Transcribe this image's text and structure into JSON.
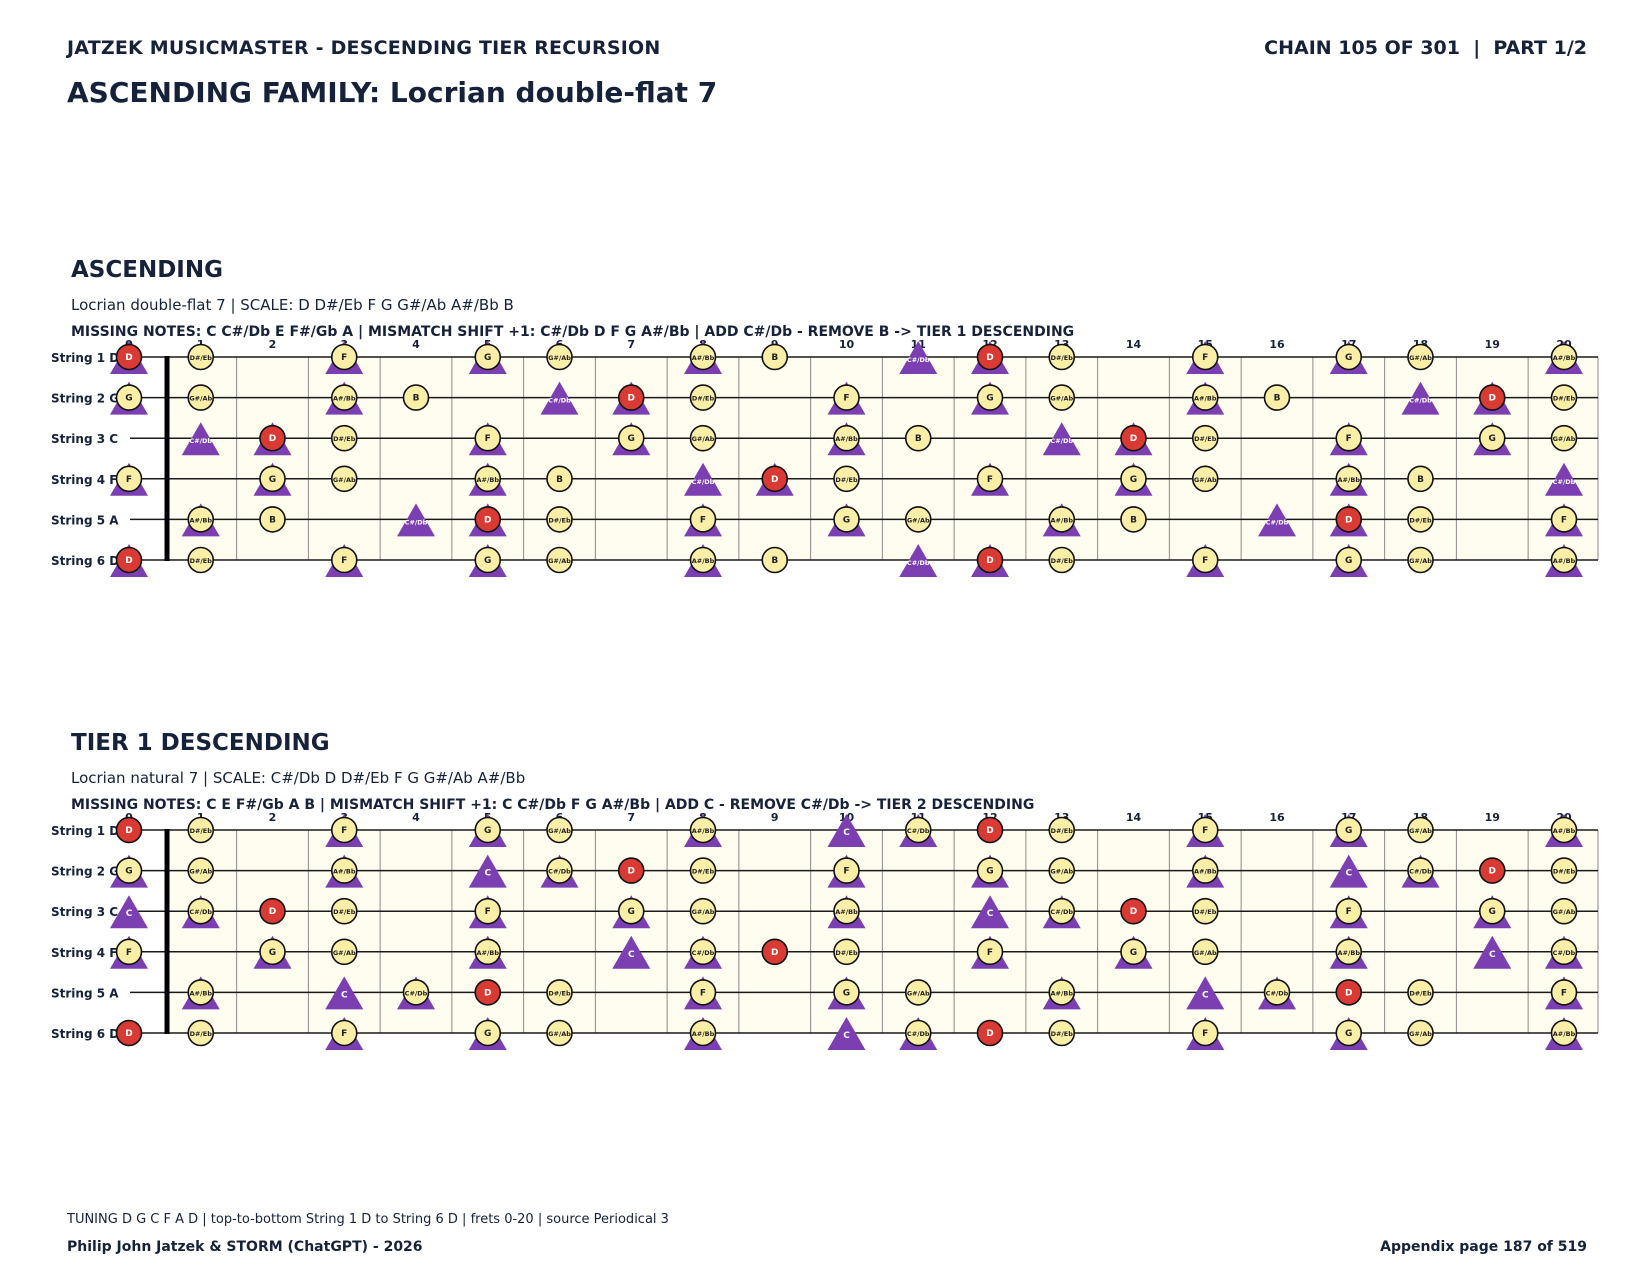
{
  "header": {
    "left": "JATZEK MUSICMASTER - DESCENDING TIER RECURSION",
    "right": "CHAIN 105 OF 301  |  PART 1/2"
  },
  "title": "ASCENDING FAMILY: Locrian double-flat 7",
  "tuning": {
    "strings": [
      {
        "label": "String 1 D",
        "open": "D"
      },
      {
        "label": "String 2 G",
        "open": "G"
      },
      {
        "label": "String 3 C",
        "open": "C"
      },
      {
        "label": "String 4 F",
        "open": "F"
      },
      {
        "label": "String 5 A",
        "open": "A"
      },
      {
        "label": "String 6 D",
        "open": "D"
      }
    ],
    "fret_count": 20
  },
  "colors": {
    "root": "#d93a34",
    "note": "#fbefa8",
    "shift": "#7b3fb2",
    "board": "#fffdf0",
    "ink": "#16213a"
  },
  "sections": [
    {
      "title": "ASCENDING",
      "subtitle": "Locrian double-flat 7  |  SCALE: D D#/Eb F G G#/Ab A#/Bb B",
      "missing": "MISSING NOTES: C C#/Db E F#/Gb A  |  MISMATCH SHIFT +1: C#/Db D F G A#/Bb  |  ADD C#/Db - REMOVE B -> TIER 1 DESCENDING",
      "root": "D",
      "scale": [
        "D",
        "D#/Eb",
        "F",
        "G",
        "G#/Ab",
        "A#/Bb",
        "B"
      ],
      "shift": [
        "C#/Db",
        "D",
        "F",
        "G",
        "A#/Bb"
      ]
    },
    {
      "title": "TIER 1 DESCENDING",
      "subtitle": "Locrian natural 7  |  SCALE: C#/Db D D#/Eb F G G#/Ab A#/Bb",
      "missing": "MISSING NOTES: C E F#/Gb A B  |  MISMATCH SHIFT +1: C C#/Db F G A#/Bb  |  ADD C - REMOVE C#/Db -> TIER 2 DESCENDING",
      "root": "D",
      "scale": [
        "C#/Db",
        "D",
        "D#/Eb",
        "F",
        "G",
        "G#/Ab",
        "A#/Bb"
      ],
      "shift": [
        "C",
        "C#/Db",
        "F",
        "G",
        "A#/Bb"
      ]
    }
  ],
  "footer": {
    "line1": "TUNING D G C F A D | top-to-bottom String 1 D to String 6 D | frets 0-20 | source Periodical 3",
    "line2": "Philip John Jatzek & STORM (ChatGPT) - 2026",
    "page": "Appendix page 187 of 519"
  }
}
